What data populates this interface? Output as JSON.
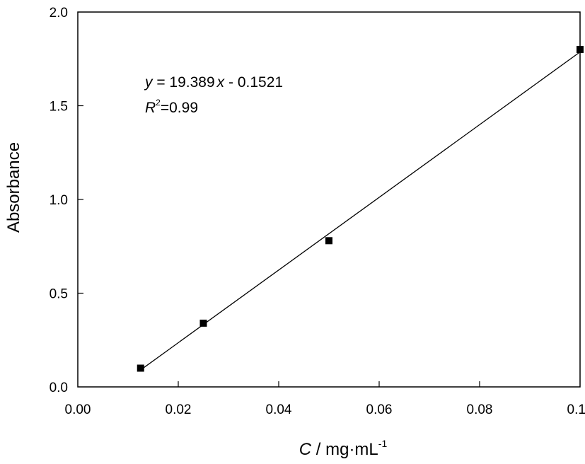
{
  "chart_data": {
    "type": "scatter",
    "xlabel": {
      "symbol": "C",
      "unit": " / mg·mL",
      "exponent": "-1"
    },
    "ylabel": "Absorbance",
    "xlim": [
      0,
      0.1
    ],
    "ylim": [
      0,
      2.0
    ],
    "xticks": [
      "0.00",
      "0.02",
      "0.04",
      "0.06",
      "0.08",
      "0.10"
    ],
    "yticks": [
      "0.0",
      "0.5",
      "1.0",
      "1.5",
      "2.0"
    ],
    "grid": false,
    "series": [
      {
        "marker": "square",
        "color": "#000000",
        "x": [
          0.0125,
          0.025,
          0.05,
          0.1
        ],
        "y": [
          0.1,
          0.34,
          0.78,
          1.8
        ]
      }
    ],
    "fit_line": {
      "slope": 19.389,
      "intercept": -0.1521,
      "x_range": [
        0.0125,
        0.1
      ],
      "color": "#000000"
    },
    "annotation": {
      "eq_y": "y",
      "eq_mid": " = 19.389",
      "eq_x": "x",
      "eq_end": " - 0.1521",
      "r_sym": "R",
      "r_exp": "2",
      "r_val": "=0.99"
    }
  }
}
